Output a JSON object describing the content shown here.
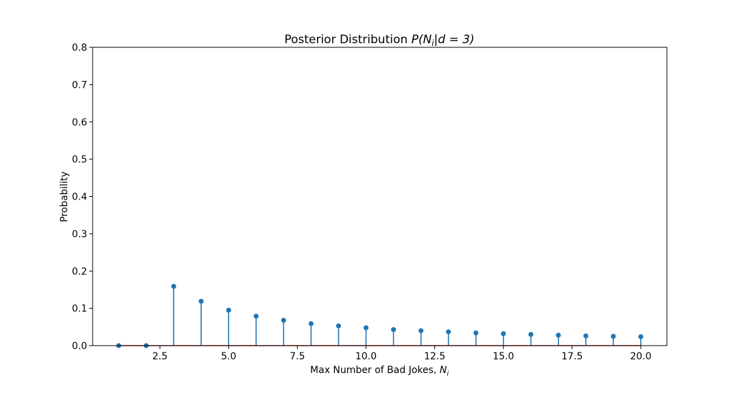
{
  "chart_data": {
    "type": "stem",
    "title": "Posterior Distribution ",
    "title_math": {
      "prefix": "P(N",
      "sub": "i",
      "suffix": "|d = 3)"
    },
    "xlabel": "Max Number of Bad Jokes, ",
    "xlabel_math": {
      "var": "N",
      "sub": "i"
    },
    "ylabel": "Probability",
    "x": [
      1,
      2,
      3,
      4,
      5,
      6,
      7,
      8,
      9,
      10,
      11,
      12,
      13,
      14,
      15,
      16,
      17,
      18,
      19,
      20
    ],
    "values": [
      0.0,
      0.0,
      0.159,
      0.119,
      0.095,
      0.079,
      0.068,
      0.059,
      0.053,
      0.048,
      0.043,
      0.04,
      0.037,
      0.034,
      0.032,
      0.03,
      0.028,
      0.026,
      0.025,
      0.024
    ],
    "xlim": [
      0.05,
      20.95
    ],
    "ylim": [
      0,
      0.8
    ],
    "x_ticks": [
      2.5,
      5.0,
      7.5,
      10.0,
      12.5,
      15.0,
      17.5,
      20.0
    ],
    "x_tick_labels": [
      "2.5",
      "5.0",
      "7.5",
      "10.0",
      "12.5",
      "15.0",
      "17.5",
      "20.0"
    ],
    "y_ticks": [
      0.0,
      0.1,
      0.2,
      0.3,
      0.4,
      0.5,
      0.6,
      0.7,
      0.8
    ],
    "y_tick_labels": [
      "0.0",
      "0.1",
      "0.2",
      "0.3",
      "0.4",
      "0.5",
      "0.6",
      "0.7",
      "0.8"
    ],
    "grid": false,
    "colors": {
      "stem": "#1f77b4",
      "marker": "#1f77b4",
      "baseline": "#d62728",
      "axes": "#000000"
    }
  }
}
